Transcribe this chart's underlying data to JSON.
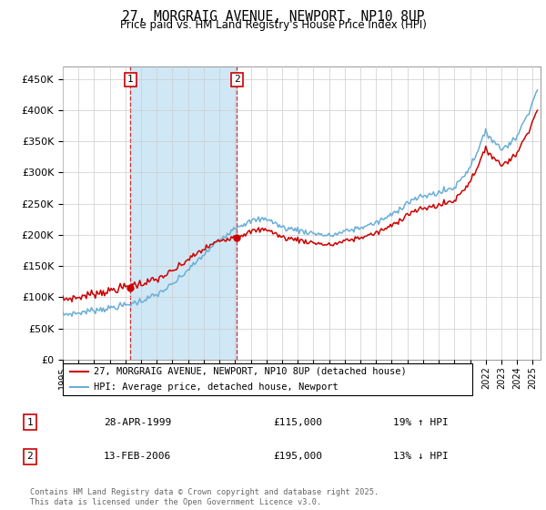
{
  "title": "27, MORGRAIG AVENUE, NEWPORT, NP10 8UP",
  "subtitle": "Price paid vs. HM Land Registry's House Price Index (HPI)",
  "ylabel_ticks": [
    "£0",
    "£50K",
    "£100K",
    "£150K",
    "£200K",
    "£250K",
    "£300K",
    "£350K",
    "£400K",
    "£450K"
  ],
  "ytick_values": [
    0,
    50000,
    100000,
    150000,
    200000,
    250000,
    300000,
    350000,
    400000,
    450000
  ],
  "ylim": [
    0,
    470000
  ],
  "xlim_start": 1995.0,
  "xlim_end": 2025.5,
  "purchase1_x": 1999.32,
  "purchase1_y": 115000,
  "purchase2_x": 2006.12,
  "purchase2_y": 195000,
  "hpi_color": "#6aaed6",
  "hpi_fill_color": "#d0e8f5",
  "price_color": "#cc0000",
  "annotation_box_color": "#cc0000",
  "footer_text": "Contains HM Land Registry data © Crown copyright and database right 2025.\nThis data is licensed under the Open Government Licence v3.0.",
  "legend_entry1": "27, MORGRAIG AVENUE, NEWPORT, NP10 8UP (detached house)",
  "legend_entry2": "HPI: Average price, detached house, Newport",
  "table_row1": [
    "1",
    "28-APR-1999",
    "£115,000",
    "19% ↑ HPI"
  ],
  "table_row2": [
    "2",
    "13-FEB-2006",
    "£195,000",
    "13% ↓ HPI"
  ],
  "xtick_years": [
    1995,
    1996,
    1997,
    1998,
    1999,
    2000,
    2001,
    2002,
    2003,
    2004,
    2005,
    2006,
    2007,
    2008,
    2009,
    2010,
    2011,
    2012,
    2013,
    2014,
    2015,
    2016,
    2017,
    2018,
    2019,
    2020,
    2021,
    2022,
    2023,
    2024,
    2025
  ],
  "hpi_anchor_years": [
    1995.0,
    1996,
    1997,
    1998,
    1999,
    2000,
    2001,
    2002,
    2003,
    2004,
    2005,
    2006,
    2007,
    2008,
    2009,
    2010,
    2011,
    2012,
    2013,
    2014,
    2015,
    2016,
    2017,
    2018,
    2019,
    2020,
    2021,
    2022,
    2023,
    2024,
    2025.3
  ],
  "hpi_anchor_vals": [
    72000,
    75000,
    79000,
    83000,
    87000,
    94000,
    104000,
    120000,
    143000,
    168000,
    192000,
    212000,
    222000,
    226000,
    212000,
    207000,
    203000,
    198000,
    205000,
    212000,
    219000,
    232000,
    252000,
    262000,
    267000,
    276000,
    308000,
    365000,
    337000,
    356000,
    432000
  ]
}
